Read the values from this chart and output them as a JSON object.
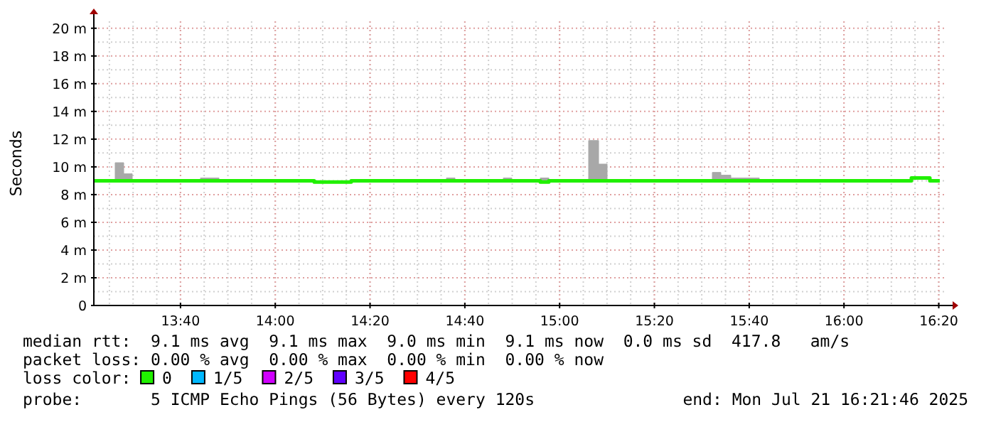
{
  "chart_data": {
    "type": "step",
    "ylabel": "Seconds",
    "legend_title": "loss color:",
    "legend": "bottom",
    "grid": true,
    "xlim": [
      13.362,
      16.362
    ],
    "xticks": [
      {
        "value": 13.6667,
        "label": "13:40"
      },
      {
        "value": 14,
        "label": "14:00"
      },
      {
        "value": 14.3333,
        "label": "14:20"
      },
      {
        "value": 14.6667,
        "label": "14:40"
      },
      {
        "value": 15,
        "label": "15:00"
      },
      {
        "value": 15.3333,
        "label": "15:20"
      },
      {
        "value": 15.6667,
        "label": "15:40"
      },
      {
        "value": 16,
        "label": "16:00"
      },
      {
        "value": 16.3333,
        "label": "16:20"
      }
    ],
    "ylim": [
      0,
      20.5
    ],
    "yticks": [
      0,
      {
        "value": 2,
        "label": "2 m"
      },
      {
        "value": 4,
        "label": "4 m"
      },
      {
        "value": 6,
        "label": "6 m"
      },
      {
        "value": 8,
        "label": "8 m"
      },
      {
        "value": 10,
        "label": "10 m"
      },
      {
        "value": 12,
        "label": "12 m"
      },
      {
        "value": 14,
        "label": "14 m"
      },
      {
        "value": 16,
        "label": "16 m"
      },
      {
        "value": 18,
        "label": "18 m"
      },
      {
        "value": 20,
        "label": "20 m"
      }
    ],
    "series": [
      {
        "name": "0",
        "color": "#20f000",
        "x": [
          13.362,
          13.437,
          13.467,
          13.497,
          13.737,
          13.802,
          14.137,
          14.267,
          14.602,
          14.632,
          14.802,
          14.832,
          14.932,
          14.962,
          15.102,
          15.137,
          15.167,
          15.537,
          15.567,
          15.602,
          15.702,
          16.237,
          16.302,
          16.337
        ],
        "values": [
          9.0,
          9.0,
          9.0,
          9.0,
          9.0,
          9.0,
          8.9,
          9.0,
          9.0,
          9.0,
          9.0,
          9.0,
          8.9,
          9.0,
          9.0,
          9.0,
          9.0,
          9.0,
          9.0,
          9.0,
          9.0,
          9.2,
          9.0,
          9.0
        ],
        "lower": [
          9.0,
          9.0,
          9.0,
          9.0,
          9.0,
          9.0,
          8.9,
          9.0,
          9.0,
          9.0,
          9.0,
          9.0,
          8.9,
          9.0,
          9.0,
          9.0,
          9.0,
          9.0,
          9.0,
          9.0,
          9.0,
          9.2,
          9.0,
          9.0
        ],
        "upper": [
          9.0,
          10.3,
          9.5,
          9.0,
          9.2,
          9.0,
          8.9,
          9.0,
          9.2,
          9.0,
          9.2,
          9.0,
          9.2,
          9.0,
          11.9,
          10.2,
          9.0,
          9.6,
          9.4,
          9.2,
          9.0,
          9.2,
          9.0,
          9.0
        ]
      },
      {
        "name": "1/5",
        "color": "#00b8ff"
      },
      {
        "name": "2/5",
        "color": "#d000ff"
      },
      {
        "name": "3/5",
        "color": "#6000ff"
      },
      {
        "name": "4/5",
        "color": "#ff0000"
      }
    ],
    "annotations": [
      "median rtt:  9.1 ms avg  9.1 ms max  9.0 ms min  9.1 ms now  0.0 ms sd  417.8   am/s",
      "packet loss: 0.00 % avg  0.00 % max  0.00 % min  0.00 % now",
      "probe:       5 ICMP Echo Pings (56 Bytes) every 120s",
      "end: Mon Jul 21 16:21:46 2025"
    ]
  }
}
